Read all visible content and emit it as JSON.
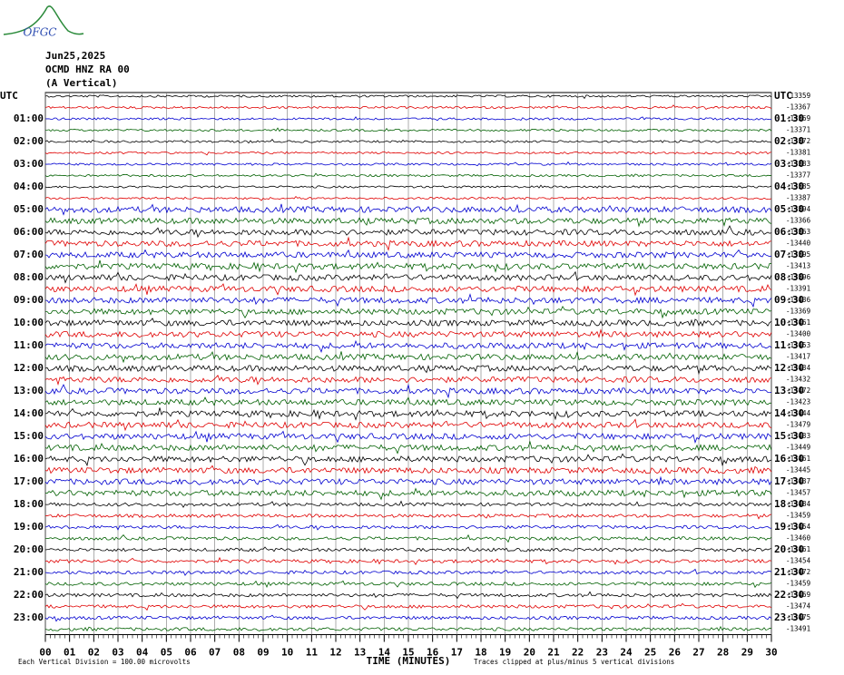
{
  "logo": "OFGC",
  "chart_data": {
    "type": "helicorder",
    "header": [
      "Jun25,2025",
      "OCMD HNZ RA 00",
      "(A Vertical)"
    ],
    "left_labels": [
      "UTC",
      "01:00",
      "02:00",
      "03:00",
      "04:00",
      "05:00",
      "06:00",
      "07:00",
      "08:00",
      "09:00",
      "10:00",
      "11:00",
      "12:00",
      "13:00",
      "14:00",
      "15:00",
      "16:00",
      "17:00",
      "18:00",
      "19:00",
      "20:00",
      "21:00",
      "22:00",
      "23:00"
    ],
    "right_labels": [
      "UTC",
      "01:30",
      "02:30",
      "03:30",
      "04:30",
      "05:30",
      "06:30",
      "07:30",
      "08:30",
      "09:30",
      "10:30",
      "11:30",
      "12:30",
      "13:30",
      "14:30",
      "15:30",
      "16:30",
      "17:30",
      "18:30",
      "19:30",
      "20:30",
      "21:30",
      "22:30",
      "23:30"
    ],
    "trace_offsets": [
      -13359,
      -13367,
      -13369,
      -13371,
      -13372,
      -13381,
      -13383,
      -13377,
      -13385,
      -13387,
      -13394,
      -13366,
      -13363,
      -13440,
      -13395,
      -13413,
      -13396,
      -13391,
      -13436,
      -13369,
      -13461,
      -13400,
      -13453,
      -13417,
      -13434,
      -13432,
      -13472,
      -13423,
      -13444,
      -13479,
      -13433,
      -13449,
      -13461,
      -13445,
      -13437,
      -13457,
      -13484,
      -13459,
      -13454,
      -13460,
      -13461,
      -13454,
      -13472,
      -13459,
      -13469,
      -13474,
      -13475,
      -13491
    ],
    "trace_colors": [
      "#000000",
      "#e00000",
      "#0000d0",
      "#006000"
    ],
    "xlabel": "TIME (MINUTES)",
    "xlim": [
      0,
      30
    ],
    "xticks": [
      {
        "value": 0,
        "label": "00"
      },
      {
        "value": 1,
        "label": "01"
      },
      {
        "value": 2,
        "label": "02"
      },
      {
        "value": 3,
        "label": "03"
      },
      {
        "value": 4,
        "label": "04"
      },
      {
        "value": 5,
        "label": "05"
      },
      {
        "value": 6,
        "label": "06"
      },
      {
        "value": 7,
        "label": "07"
      },
      {
        "value": 8,
        "label": "08"
      },
      {
        "value": 9,
        "label": "09"
      },
      10,
      11,
      12,
      13,
      14,
      15,
      16,
      17,
      18,
      19,
      20,
      21,
      22,
      23,
      24,
      25,
      26,
      27,
      28,
      29,
      30
    ],
    "footer_left": "Each Vertical Division =  100.00 microvolts",
    "footer_right": "Traces clipped at plus/minus 5 vertical divisions",
    "grid": true
  }
}
